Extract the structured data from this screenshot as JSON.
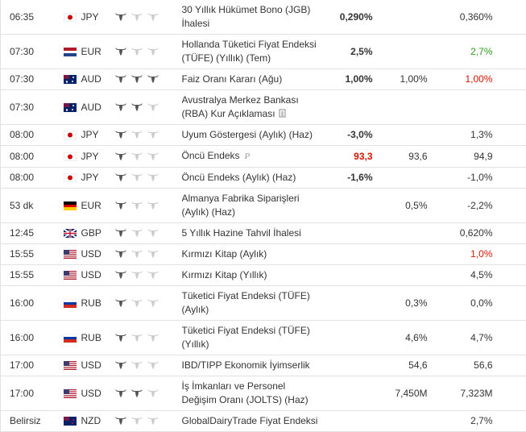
{
  "table": {
    "rows": [
      {
        "time": "06:35",
        "currency": "JPY",
        "country": "jp",
        "importance": 1,
        "event": [
          "30 Yıllık Hükümet Bono (JGB)",
          "İhalesi"
        ],
        "actual": "0,290%",
        "previous": "0,360%"
      },
      {
        "time": "07:30",
        "currency": "EUR",
        "country": "nl",
        "importance": 1,
        "event": [
          "Hollanda Tüketici Fiyat Endeksi",
          "(TÜFE) (Yıllık) (Tem)"
        ],
        "actual": "2,5%",
        "previous": "2,7%",
        "previous_color": "green"
      },
      {
        "time": "07:30",
        "currency": "AUD",
        "country": "au",
        "importance": 3,
        "event": [
          "Faiz Oranı Kararı (Ağu)"
        ],
        "actual": "1,00%",
        "forecast": "1,00%",
        "previous": "1,00%",
        "previous_color": "red"
      },
      {
        "time": "07:30",
        "currency": "AUD",
        "country": "au",
        "importance": 2,
        "event": [
          "Avustralya Merkez Bankası",
          "(RBA) Kur Açıklaması"
        ],
        "icon": "doc"
      },
      {
        "time": "08:00",
        "currency": "JPY",
        "country": "jp",
        "importance": 1,
        "event": [
          "Uyum Göstergesi (Aylık) (Haz)"
        ],
        "actual": "-3,0%",
        "previous": "1,3%"
      },
      {
        "time": "08:00",
        "currency": "JPY",
        "country": "jp",
        "importance": 1,
        "event": [
          "Öncü Endeks"
        ],
        "icon": "p",
        "actual": "93,3",
        "actual_color": "red",
        "forecast": "93,6",
        "previous": "94,9"
      },
      {
        "time": "08:00",
        "currency": "JPY",
        "country": "jp",
        "importance": 1,
        "event": [
          "Öncü Endeks (Aylık) (Haz)"
        ],
        "actual": "-1,6%",
        "previous": "-1,0%"
      },
      {
        "time": "53 dk",
        "currency": "EUR",
        "country": "de",
        "importance": 1,
        "event": [
          "Almanya Fabrika Siparişleri",
          "(Aylık) (Haz)"
        ],
        "forecast": "0,5%",
        "previous": "-2,2%"
      },
      {
        "time": "12:45",
        "currency": "GBP",
        "country": "gb",
        "importance": 1,
        "event": [
          "5 Yıllık Hazine Tahvil İhalesi"
        ],
        "previous": "0,620%"
      },
      {
        "time": "15:55",
        "currency": "USD",
        "country": "us",
        "importance": 1,
        "event": [
          "Kırmızı Kitap (Aylık)"
        ],
        "previous": "1,0%",
        "previous_color": "red"
      },
      {
        "time": "15:55",
        "currency": "USD",
        "country": "us",
        "importance": 1,
        "event": [
          "Kırmızı Kitap (Yıllık)"
        ],
        "previous": "4,5%"
      },
      {
        "time": "16:00",
        "currency": "RUB",
        "country": "ru",
        "importance": 1,
        "event": [
          "Tüketici Fiyat Endeksi (TÜFE)",
          "(Aylık)"
        ],
        "forecast": "0,3%",
        "previous": "0,0%"
      },
      {
        "time": "16:00",
        "currency": "RUB",
        "country": "ru",
        "importance": 1,
        "event": [
          "Tüketici Fiyat Endeksi (TÜFE)",
          "(Yıllık)"
        ],
        "forecast": "4,6%",
        "previous": "4,7%"
      },
      {
        "time": "17:00",
        "currency": "USD",
        "country": "us",
        "importance": 1,
        "event": [
          "IBD/TIPP Ekonomik İyimserlik"
        ],
        "forecast": "54,6",
        "previous": "56,6"
      },
      {
        "time": "17:00",
        "currency": "USD",
        "country": "us",
        "importance": 2,
        "event": [
          "İş İmkanları ve Personel",
          "Değişim Oranı (JOLTS) (Haz)"
        ],
        "forecast": "7,450M",
        "previous": "7,323M"
      },
      {
        "time": "Belirsiz",
        "currency": "NZD",
        "country": "nz",
        "importance": 1,
        "event": [
          "GlobalDairyTrade Fiyat Endeksi"
        ],
        "previous": "2,7%"
      }
    ]
  }
}
